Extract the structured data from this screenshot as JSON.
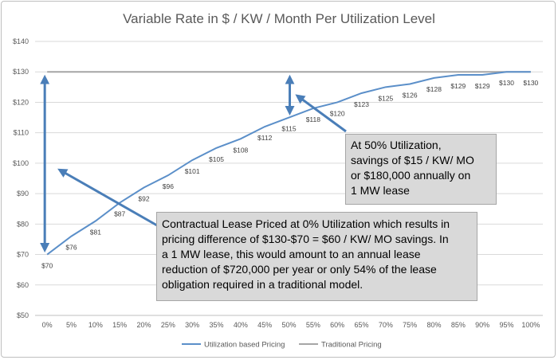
{
  "chart_data": {
    "type": "line",
    "title": "Variable Rate in $ / KW / Month Per Utilization Level",
    "categories": [
      "0%",
      "5%",
      "10%",
      "15%",
      "20%",
      "25%",
      "30%",
      "35%",
      "40%",
      "45%",
      "50%",
      "55%",
      "60%",
      "65%",
      "70%",
      "75%",
      "80%",
      "85%",
      "90%",
      "95%",
      "100%"
    ],
    "y_ticks": [
      "$50",
      "$60",
      "$70",
      "$80",
      "$90",
      "$100",
      "$110",
      "$120",
      "$130",
      "$140"
    ],
    "ylim": [
      50,
      140
    ],
    "series": [
      {
        "name": "Utilization based Pricing",
        "color": "#5b8fc9",
        "values": [
          70,
          76,
          81,
          87,
          92,
          96,
          101,
          105,
          108,
          112,
          115,
          118,
          120,
          123,
          125,
          126,
          128,
          129,
          129,
          130,
          130
        ],
        "labels": [
          "$70",
          "$76",
          "$81",
          "$87",
          "$92",
          "$96",
          "$101",
          "$105",
          "$108",
          "$112",
          "$115",
          "$118",
          "$120",
          "$123",
          "$125",
          "$126",
          "$128",
          "$129",
          "$129",
          "$130",
          "$130"
        ]
      },
      {
        "name": "Traditional Pricing",
        "color": "#a6a6a6",
        "values": [
          130,
          130,
          130,
          130,
          130,
          130,
          130,
          130,
          130,
          130,
          130,
          130,
          130,
          130,
          130,
          130,
          130,
          130,
          130,
          130,
          130
        ]
      }
    ],
    "grid": true,
    "legend_position": "bottom",
    "annotation_color": "#4a7eb8"
  },
  "callouts": {
    "utilization_50": [
      "At 50% Utilization,",
      "savings of $15 / KW/ MO",
      "or $180,000 annually on",
      "1 MW lease"
    ],
    "utilization_0": [
      "Contractual Lease Priced at 0% Utilization which results in",
      "pricing difference of $130-$70 = $60 / KW/ MO savings.  In",
      "a 1 MW lease, this would amount to an annual lease",
      "reduction of $720,000 per year or only 54% of the lease",
      "obligation required in a traditional model."
    ]
  }
}
